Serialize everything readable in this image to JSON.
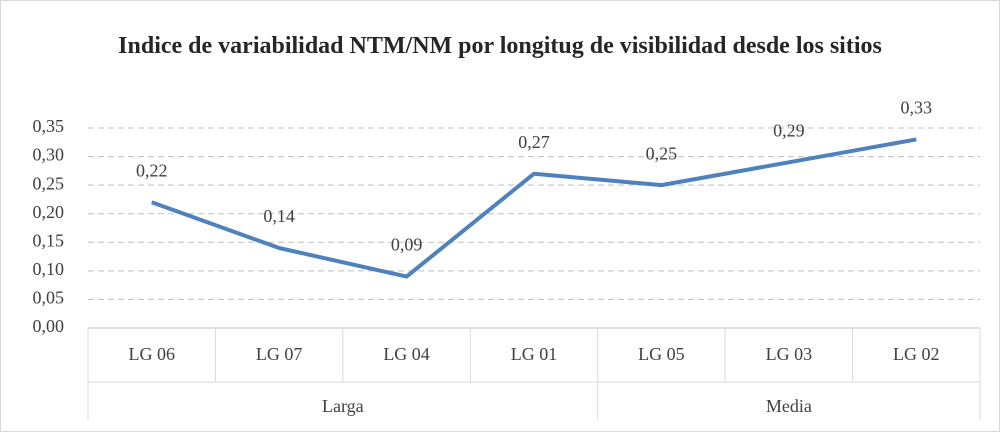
{
  "chart_data": {
    "type": "line",
    "title": "Indice de variabilidad NTM/NM por longitug de visibilidad desde los sitios",
    "categories": [
      "LG 06",
      "LG 07",
      "LG 04",
      "LG 01",
      "LG 05",
      "LG 03",
      "LG 02"
    ],
    "groups": [
      {
        "label": "Larga",
        "count": 4
      },
      {
        "label": "Media",
        "count": 3
      }
    ],
    "values": [
      0.22,
      0.14,
      0.09,
      0.27,
      0.25,
      0.29,
      0.33
    ],
    "value_labels": [
      "0,22",
      "0,14",
      "0,09",
      "0,27",
      "0,25",
      "0,29",
      "0,33"
    ],
    "color": "#4f81bd",
    "ylim": [
      0,
      0.35
    ],
    "yticks": [
      {
        "value": 0,
        "label": "0,00"
      },
      {
        "value": 0.05,
        "label": "0,05"
      },
      {
        "value": 0.1,
        "label": "0,10"
      },
      {
        "value": 0.15,
        "label": "0,15"
      },
      {
        "value": 0.2,
        "label": "0,20"
      },
      {
        "value": 0.25,
        "label": "0,25"
      },
      {
        "value": 0.3,
        "label": "0,30"
      },
      {
        "value": 0.35,
        "label": "0,35"
      }
    ],
    "grid": true
  }
}
